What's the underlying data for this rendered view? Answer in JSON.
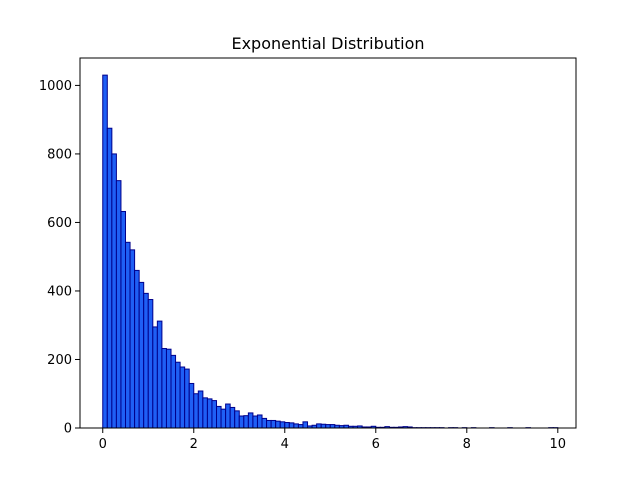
{
  "chart_data": {
    "type": "bar",
    "title": "Exponential Distribution",
    "xlabel": "",
    "ylabel": "",
    "xlim": [
      -0.5,
      10.4
    ],
    "ylim": [
      0,
      1080
    ],
    "grid": false,
    "bar_color": "#1f5ff5",
    "edge_color": "#00008b",
    "x_ticks": [
      0,
      2,
      4,
      6,
      8,
      10
    ],
    "y_ticks": [
      0,
      200,
      400,
      600,
      800,
      1000
    ],
    "bin_width": 0.1,
    "bin_start": 0,
    "counts": [
      1030,
      875,
      800,
      722,
      632,
      542,
      520,
      460,
      425,
      393,
      375,
      295,
      312,
      232,
      230,
      212,
      192,
      178,
      172,
      130,
      100,
      108,
      88,
      85,
      80,
      63,
      55,
      70,
      60,
      50,
      35,
      36,
      44,
      35,
      38,
      28,
      22,
      22,
      20,
      18,
      16,
      15,
      12,
      10,
      18,
      6,
      8,
      12,
      11,
      10,
      10,
      8,
      7,
      8,
      5,
      5,
      6,
      3,
      3,
      5,
      2,
      2,
      4,
      2,
      2,
      3,
      4,
      3,
      1,
      1,
      1,
      1,
      1,
      1,
      1,
      0,
      1,
      1,
      0,
      1,
      0,
      1,
      0,
      0,
      0,
      1,
      0,
      0,
      0,
      1,
      0,
      0,
      0,
      1,
      0,
      0,
      0,
      0,
      1,
      1
    ]
  }
}
